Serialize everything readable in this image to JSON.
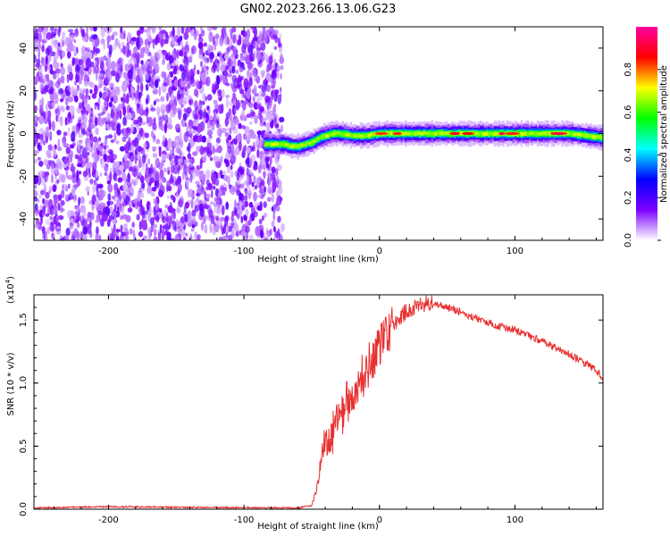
{
  "figure_title": "GN02.2023.266.13.06.G23",
  "chart_data": [
    {
      "type": "heatmap",
      "xlabel": "Height of straight line (km)",
      "ylabel": "Frequency (Hz)",
      "xlim": [
        -255,
        165
      ],
      "ylim": [
        -50,
        50
      ],
      "xticks": [
        -200,
        -100,
        0,
        100
      ],
      "yticks": [
        -40,
        -20,
        0,
        20,
        40
      ],
      "grid": false,
      "noise_region_x": [
        -255,
        -72
      ],
      "signal_track": {
        "x": [
          -85,
          -70,
          -65,
          -60,
          -55,
          -50,
          -45,
          -40,
          -35,
          -30,
          -20,
          -10,
          0,
          20,
          40,
          60,
          80,
          100,
          120,
          140,
          165
        ],
        "y": [
          -5,
          -5,
          -6,
          -6,
          -5,
          -4,
          -2,
          -1,
          0,
          0,
          -1,
          -1,
          0,
          0,
          0,
          0,
          0,
          0,
          0,
          0,
          -2
        ]
      },
      "colorbar": {
        "label": "Normalized spectral amplitude",
        "range": [
          0,
          1
        ],
        "ticks": [
          0.0,
          0.2,
          0.4,
          0.6,
          0.8
        ],
        "tick_labels": [
          "0.0",
          "0.2",
          "0.4",
          "0.6",
          "0.8"
        ],
        "colormap": [
          "#ffffff",
          "#7b00ff",
          "#0000ff",
          "#00ffff",
          "#00ff00",
          "#ffff00",
          "#ff0000",
          "#ff00a0"
        ]
      }
    },
    {
      "type": "line",
      "xlabel": "Height of straight line (km)",
      "ylabel": "SNR (10 * v/v)",
      "y_multiplier": "(x10",
      "y_multiplier_exp": "4",
      "y_multiplier_close": ")",
      "xlim": [
        -255,
        165
      ],
      "ylim": [
        0,
        1.7
      ],
      "xticks": [
        -200,
        -100,
        0,
        100
      ],
      "yticks": [
        0.0,
        0.5,
        1.0,
        1.5
      ],
      "ytick_labels": [
        "0.0",
        "0.5",
        "1.0",
        "1.5"
      ],
      "grid": false,
      "series": [
        {
          "color": "#e83030",
          "x": [
            -255,
            -200,
            -150,
            -100,
            -60,
            -50,
            -48,
            -45,
            -42,
            -40,
            -35,
            -30,
            -25,
            -20,
            -15,
            -10,
            -5,
            0,
            5,
            10,
            15,
            20,
            25,
            30,
            35,
            40,
            45,
            50,
            60,
            70,
            80,
            90,
            100,
            110,
            120,
            130,
            140,
            150,
            160,
            165
          ],
          "y": [
            0.01,
            0.02,
            0.015,
            0.012,
            0.01,
            0.03,
            0.1,
            0.25,
            0.5,
            0.55,
            0.6,
            0.7,
            0.82,
            0.92,
            1.0,
            1.1,
            1.2,
            1.3,
            1.38,
            1.45,
            1.52,
            1.57,
            1.6,
            1.62,
            1.63,
            1.63,
            1.62,
            1.6,
            1.56,
            1.52,
            1.48,
            1.45,
            1.42,
            1.38,
            1.33,
            1.28,
            1.23,
            1.17,
            1.1,
            1.03
          ]
        }
      ]
    }
  ]
}
